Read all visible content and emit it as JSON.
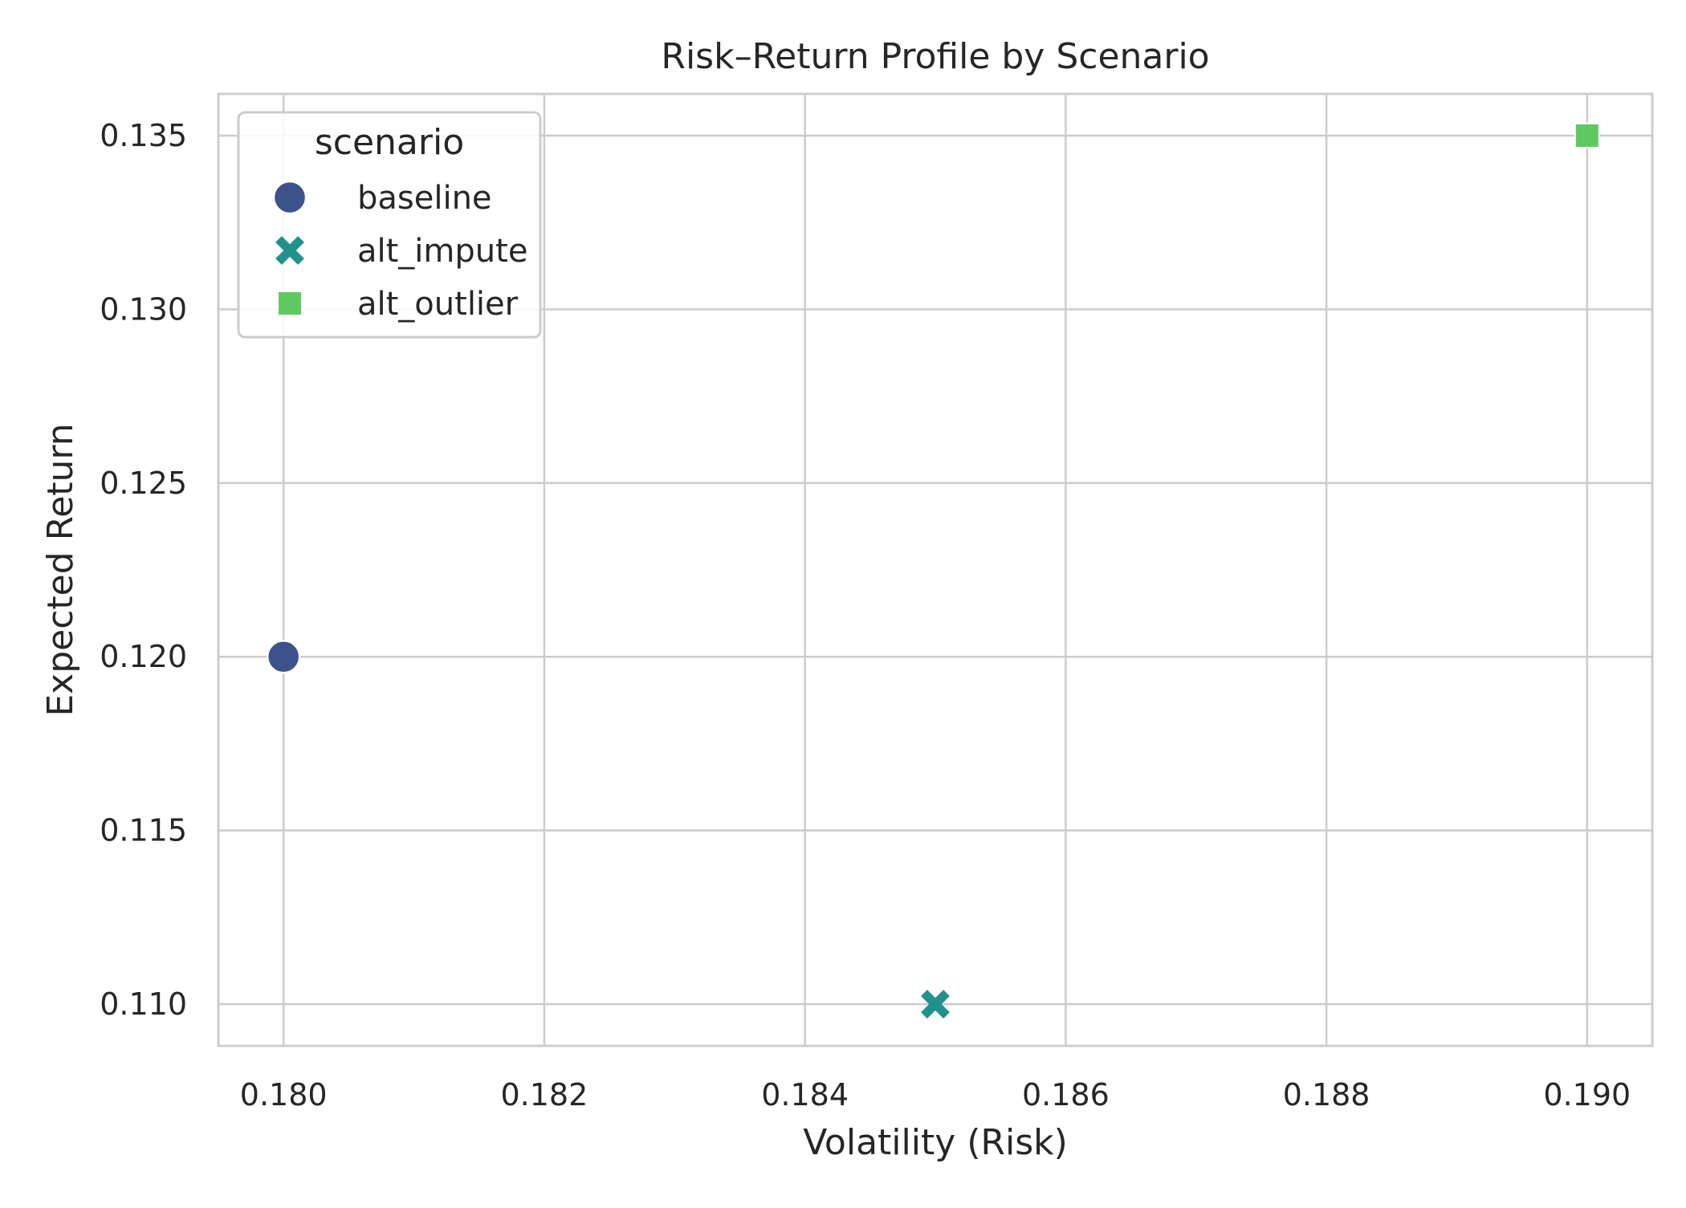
{
  "chart_data": {
    "type": "scatter",
    "title": "Risk–Return Profile by Scenario",
    "xlabel": "Volatility (Risk)",
    "ylabel": "Expected Return",
    "xlim": [
      0.1795,
      0.1905
    ],
    "ylim": [
      0.1088,
      0.1362
    ],
    "xticks": [
      0.18,
      0.182,
      0.184,
      0.186,
      0.188,
      0.19
    ],
    "xtick_labels": [
      "0.180",
      "0.182",
      "0.184",
      "0.186",
      "0.188",
      "0.190"
    ],
    "yticks": [
      0.11,
      0.115,
      0.12,
      0.125,
      0.13,
      0.135
    ],
    "ytick_labels": [
      "0.110",
      "0.115",
      "0.120",
      "0.125",
      "0.130",
      "0.135"
    ],
    "grid": true,
    "legend": {
      "title": "scenario",
      "placement": "top-left"
    },
    "series": [
      {
        "name": "baseline",
        "marker": "circle",
        "color": "#3b528b",
        "points": [
          {
            "x": 0.18,
            "y": 0.12
          }
        ]
      },
      {
        "name": "alt_impute",
        "marker": "x",
        "color": "#21918c",
        "points": [
          {
            "x": 0.185,
            "y": 0.11
          }
        ]
      },
      {
        "name": "alt_outlier",
        "marker": "square",
        "color": "#5ec962",
        "points": [
          {
            "x": 0.19,
            "y": 0.135
          }
        ]
      }
    ]
  }
}
